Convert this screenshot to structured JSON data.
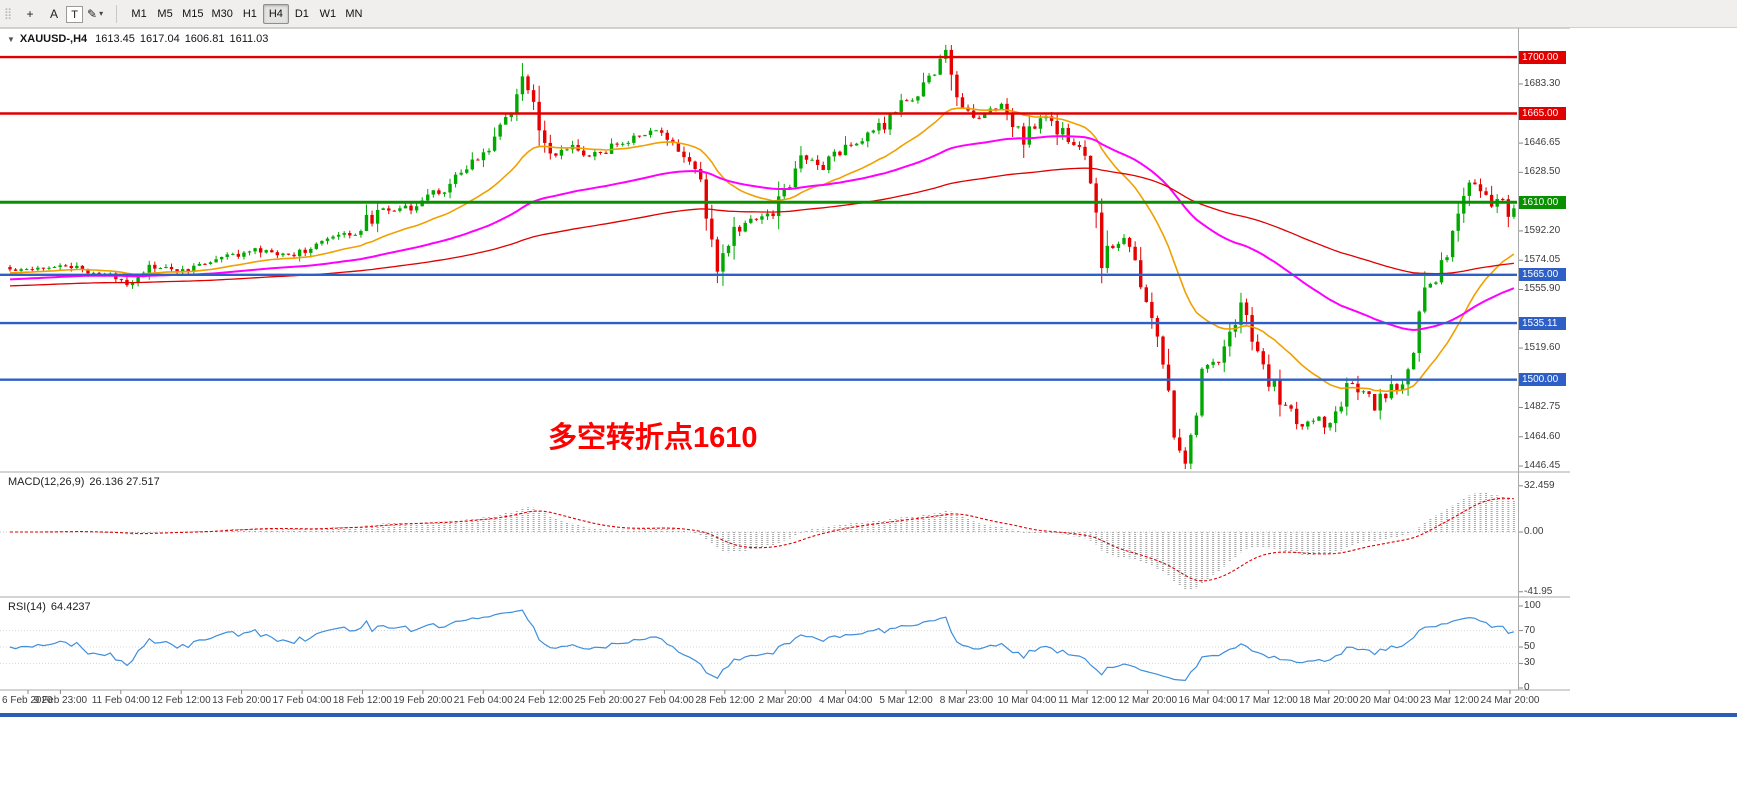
{
  "toolbar": {
    "drag_handle": "⣿",
    "tools": [
      {
        "name": "crosshair-tool-button",
        "glyph": "+"
      },
      {
        "name": "text-annotation-button",
        "glyph": "A"
      },
      {
        "name": "text-label-button",
        "glyph": "T",
        "boxed": true
      },
      {
        "name": "drawing-tool-button",
        "glyph": "✎",
        "has_dropdown": true
      }
    ],
    "timeframes": [
      "M1",
      "M5",
      "M15",
      "M30",
      "H1",
      "H4",
      "D1",
      "W1",
      "MN"
    ],
    "selected_timeframe": "H4"
  },
  "chart_header": {
    "collapse_icon": "▼",
    "symbol": "XAUUSD-,H4",
    "open": "1613.45",
    "high": "1617.04",
    "low": "1606.81",
    "close": "1611.03"
  },
  "annotation": {
    "text": "多空转折点1610",
    "color": "#ff0000"
  },
  "price_axis": {
    "ticks": [
      {
        "label": "1683.30",
        "value": 1683.3
      },
      {
        "label": "1646.65",
        "value": 1646.65
      },
      {
        "label": "1628.50",
        "value": 1628.5
      },
      {
        "label": "1592.20",
        "value": 1592.2
      },
      {
        "label": "1574.05",
        "value": 1574.05
      },
      {
        "label": "1555.90",
        "value": 1555.9
      },
      {
        "label": "1519.60",
        "value": 1519.6
      },
      {
        "label": "1482.75",
        "value": 1482.75
      },
      {
        "label": "1464.60",
        "value": 1464.6
      },
      {
        "label": "1446.45",
        "value": 1446.45
      }
    ],
    "badges": [
      {
        "label": "1700.00",
        "value": 1700.0,
        "color": "#e00000",
        "width": 2.4
      },
      {
        "label": "1665.00",
        "value": 1665.0,
        "color": "#e00000",
        "width": 2.4
      },
      {
        "label": "1610.00",
        "value": 1610.0,
        "color": "#089000",
        "width": 3
      },
      {
        "label": "1565.00",
        "value": 1565.0,
        "color": "#2e5fc7",
        "width": 2.4
      },
      {
        "label": "1535.11",
        "value": 1535.11,
        "color": "#2e5fc7",
        "width": 2.4
      },
      {
        "label": "1500.00",
        "value": 1500.0,
        "color": "#2e5fc7",
        "width": 2.4
      }
    ]
  },
  "time_axis": {
    "labels": [
      "6 Feb 2020",
      "9 Feb 23:00",
      "11 Feb 04:00",
      "12 Feb 12:00",
      "13 Feb 20:00",
      "17 Feb 04:00",
      "18 Feb 12:00",
      "19 Feb 20:00",
      "21 Feb 04:00",
      "24 Feb 12:00",
      "25 Feb 20:00",
      "27 Feb 04:00",
      "28 Feb 12:00",
      "2 Mar 20:00",
      "4 Mar 04:00",
      "5 Mar 12:00",
      "8 Mar 23:00",
      "10 Mar 04:00",
      "11 Mar 12:00",
      "12 Mar 20:00",
      "16 Mar 04:00",
      "17 Mar 12:00",
      "18 Mar 20:00",
      "20 Mar 04:00",
      "23 Mar 12:00",
      "24 Mar 20:00"
    ]
  },
  "macd_panel": {
    "label": "MACD(12,26,9)",
    "values": "26.136 27.517",
    "ticks": [
      {
        "label": "32.459",
        "value": 32.459
      },
      {
        "label": "0.00",
        "value": 0
      },
      {
        "label": "-41.95",
        "value": -41.95
      }
    ]
  },
  "rsi_panel": {
    "label": "RSI(14)",
    "value": "64.4237",
    "ticks": [
      100,
      70,
      50,
      30,
      0
    ],
    "levels": [
      70,
      50,
      30
    ]
  },
  "chart_data": {
    "type": "candlestick",
    "symbol": "XAUUSD",
    "timeframe": "H4",
    "title": "XAUUSD-,H4 1613.45 1617.04 1606.81 1611.03",
    "price_range": {
      "min": 1443,
      "max": 1706
    },
    "candle_count": 271,
    "price_keyframes": [
      [
        0,
        1568
      ],
      [
        9,
        1571
      ],
      [
        16,
        1566
      ],
      [
        21,
        1561
      ],
      [
        25,
        1570
      ],
      [
        31,
        1567
      ],
      [
        37,
        1575
      ],
      [
        44,
        1580
      ],
      [
        50,
        1577
      ],
      [
        56,
        1585
      ],
      [
        62,
        1592
      ],
      [
        66,
        1604
      ],
      [
        72,
        1608
      ],
      [
        78,
        1619
      ],
      [
        83,
        1632
      ],
      [
        86,
        1645
      ],
      [
        89,
        1660
      ],
      [
        92,
        1684
      ],
      [
        93,
        1680
      ],
      [
        95,
        1658
      ],
      [
        97,
        1637
      ],
      [
        100,
        1645
      ],
      [
        103,
        1638
      ],
      [
        107,
        1642
      ],
      [
        112,
        1650
      ],
      [
        116,
        1654
      ],
      [
        119,
        1645
      ],
      [
        122,
        1636
      ],
      [
        124,
        1620
      ],
      [
        126,
        1586
      ],
      [
        127,
        1570
      ],
      [
        130,
        1592
      ],
      [
        133,
        1598
      ],
      [
        137,
        1605
      ],
      [
        140,
        1623
      ],
      [
        142,
        1638
      ],
      [
        146,
        1634
      ],
      [
        150,
        1645
      ],
      [
        154,
        1650
      ],
      [
        158,
        1662
      ],
      [
        161,
        1672
      ],
      [
        164,
        1680
      ],
      [
        166,
        1693
      ],
      [
        168,
        1700
      ],
      [
        169,
        1688
      ],
      [
        171,
        1668
      ],
      [
        174,
        1662
      ],
      [
        177,
        1672
      ],
      [
        179,
        1662
      ],
      [
        182,
        1650
      ],
      [
        185,
        1662
      ],
      [
        187,
        1657
      ],
      [
        190,
        1650
      ],
      [
        193,
        1640
      ],
      [
        195,
        1600
      ],
      [
        196,
        1572
      ],
      [
        198,
        1585
      ],
      [
        200,
        1592
      ],
      [
        202,
        1570
      ],
      [
        204,
        1545
      ],
      [
        206,
        1530
      ],
      [
        208,
        1490
      ],
      [
        209,
        1465
      ],
      [
        211,
        1452
      ],
      [
        213,
        1480
      ],
      [
        214,
        1505
      ],
      [
        217,
        1515
      ],
      [
        219,
        1528
      ],
      [
        221,
        1547
      ],
      [
        223,
        1528
      ],
      [
        225,
        1505
      ],
      [
        227,
        1495
      ],
      [
        230,
        1478
      ],
      [
        232,
        1472
      ],
      [
        235,
        1480
      ],
      [
        236,
        1468
      ],
      [
        239,
        1488
      ],
      [
        240,
        1498
      ],
      [
        243,
        1490
      ],
      [
        245,
        1485
      ],
      [
        248,
        1495
      ],
      [
        250,
        1492
      ],
      [
        252,
        1520
      ],
      [
        254,
        1555
      ],
      [
        256,
        1562
      ],
      [
        258,
        1578
      ],
      [
        260,
        1600
      ],
      [
        262,
        1625
      ],
      [
        264,
        1618
      ],
      [
        266,
        1608
      ],
      [
        268,
        1616
      ],
      [
        269,
        1605
      ],
      [
        270,
        1611
      ]
    ],
    "horizontal_lines": [
      1700,
      1665,
      1610,
      1565,
      1535.11,
      1500
    ],
    "moving_averages": [
      {
        "name": "ma-fast",
        "period": 24,
        "init": 1566,
        "color": "#f0a000",
        "width": 1.6
      },
      {
        "name": "ma-mid",
        "period": 72,
        "init": 1562,
        "color": "#ff00ff",
        "width": 2
      },
      {
        "name": "ma-slow",
        "period": 160,
        "init": 1558,
        "color": "#e00000",
        "width": 1.3
      }
    ],
    "indicators": [
      {
        "name": "MACD",
        "params": [
          12,
          26,
          9
        ],
        "current": [
          26.136,
          27.517
        ]
      },
      {
        "name": "RSI",
        "params": [
          14
        ],
        "current": 64.4237
      }
    ],
    "colors": {
      "up": "#00a800",
      "down": "#e60000",
      "macd_histogram": "#a8a8a8",
      "macd_signal": "#dd0000",
      "rsi_line": "#3f8edc",
      "annotation": "#ff0000"
    }
  }
}
